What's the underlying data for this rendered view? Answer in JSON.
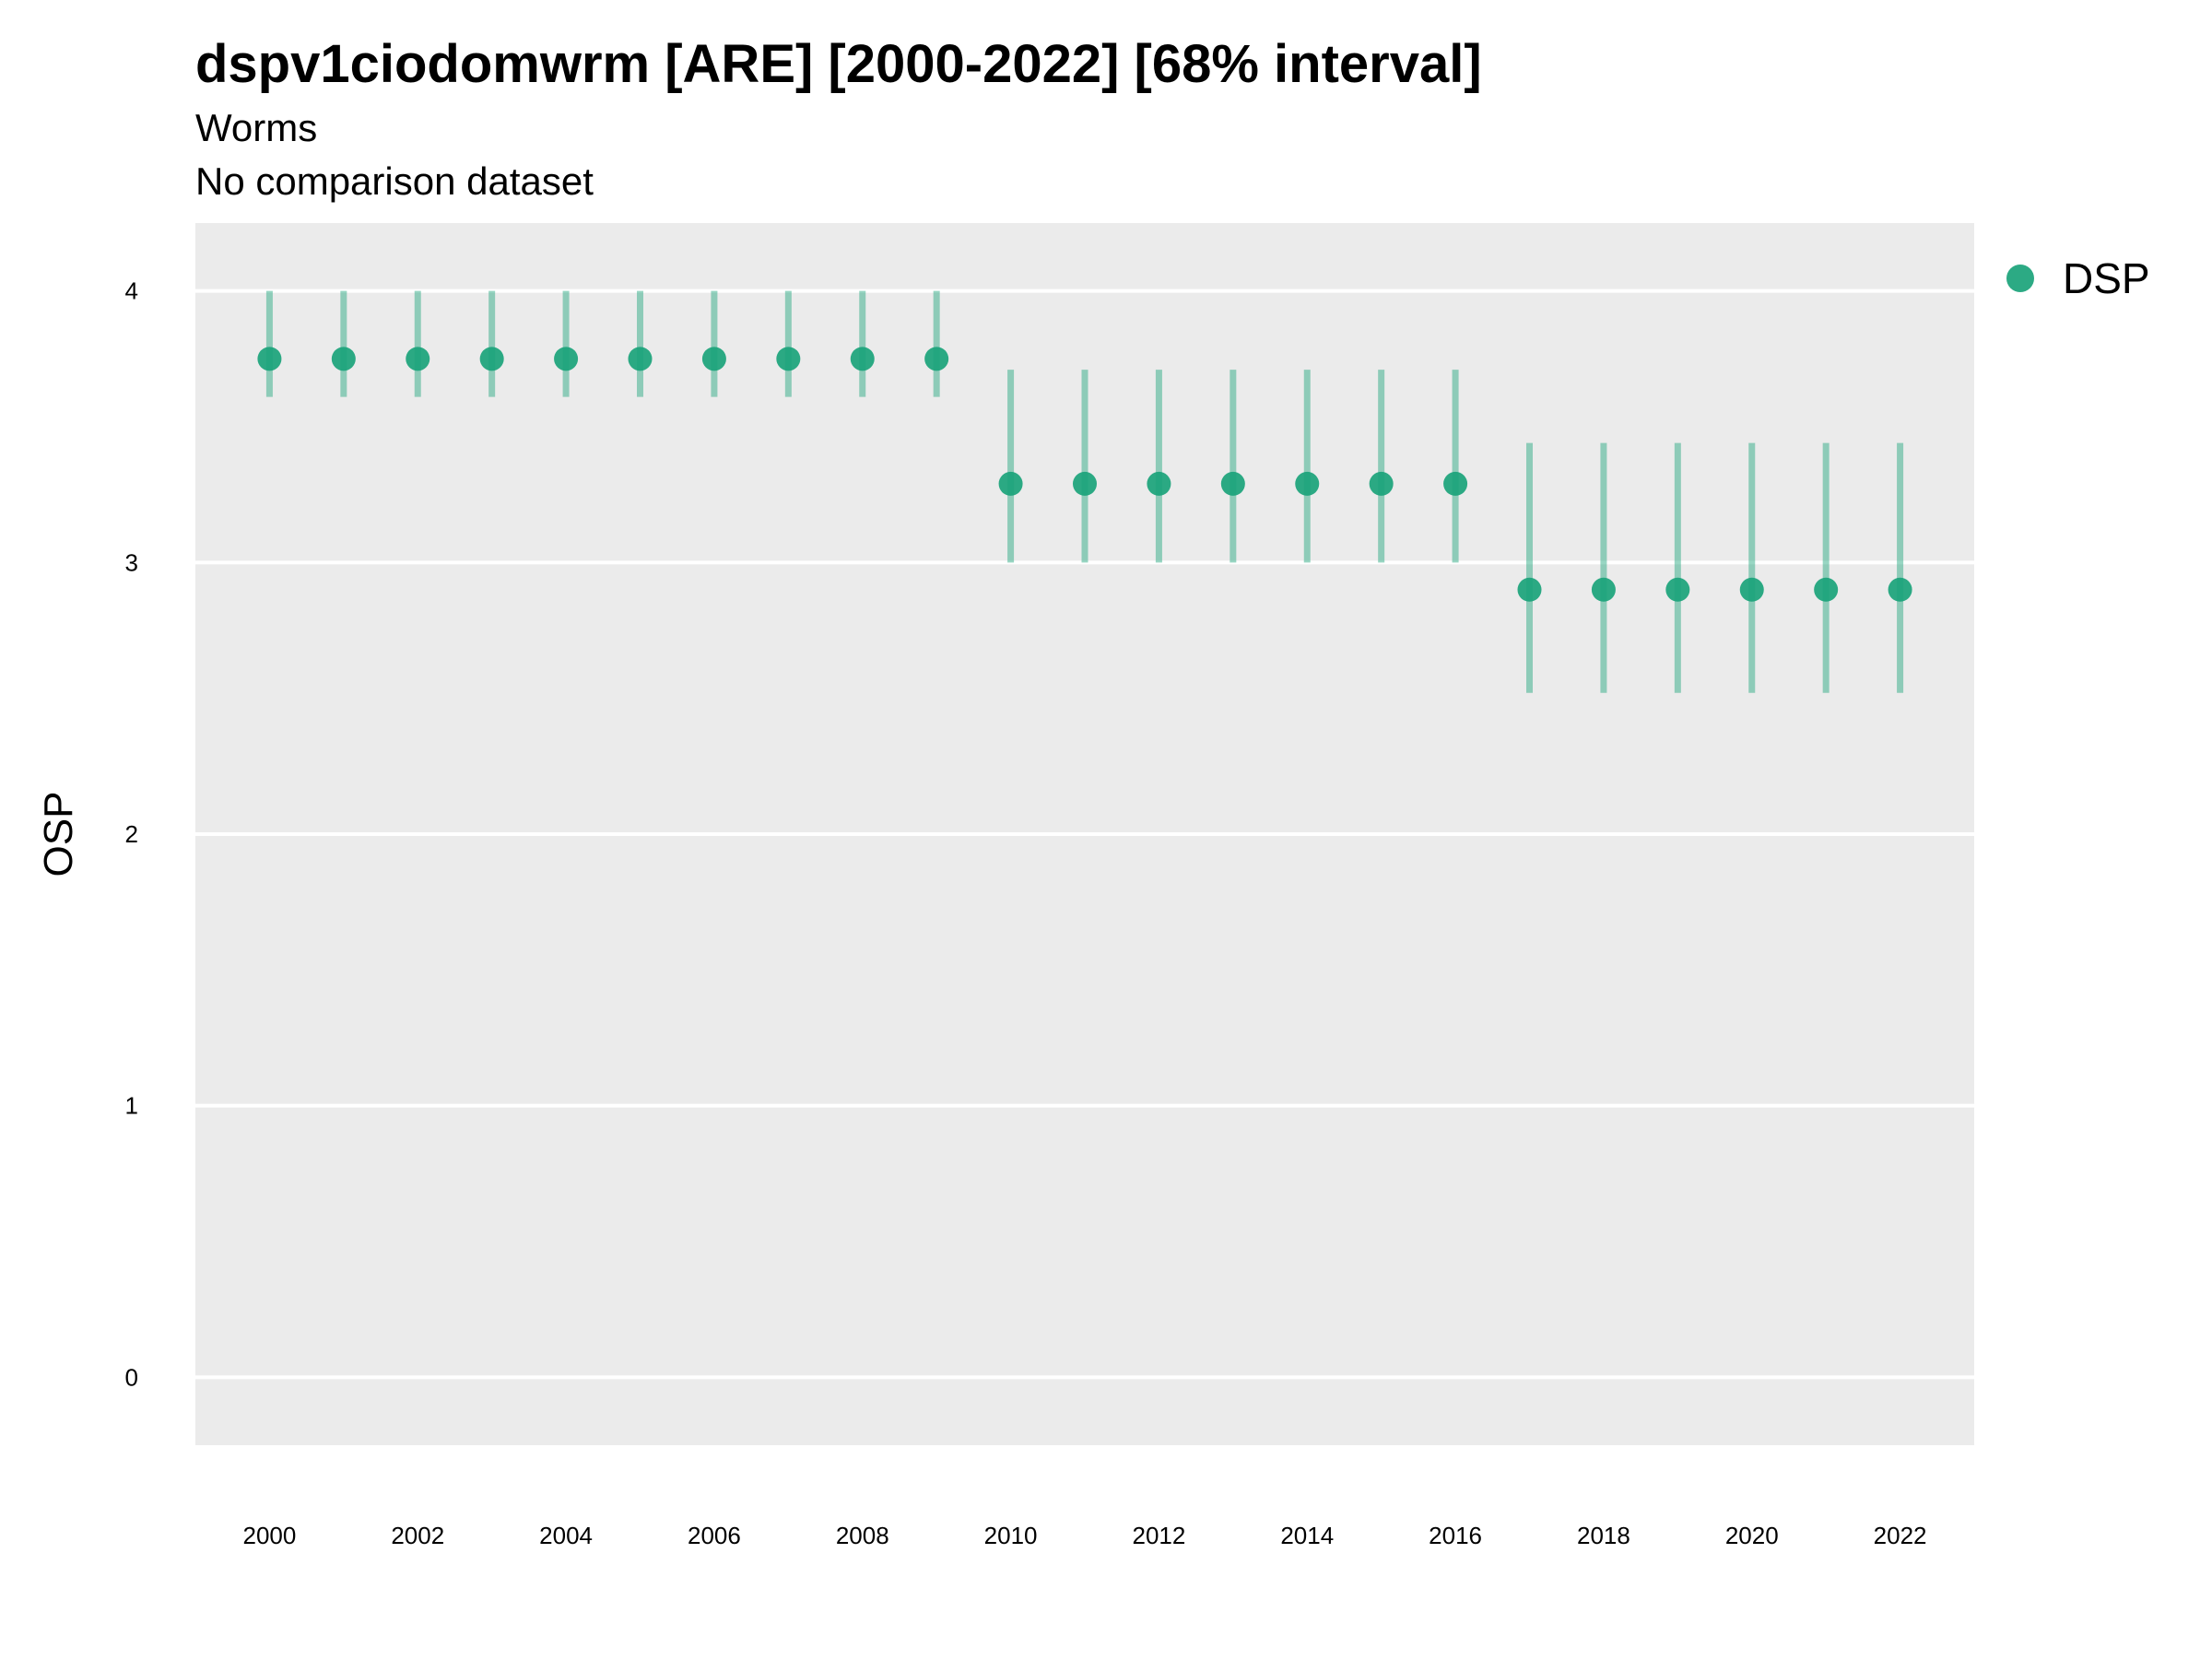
{
  "chart_data": {
    "type": "scatter",
    "title": "dspv1ciodomwrm [ARE] [2000-2022] [68% interval]",
    "subtitle": "Worms",
    "caption": "No comparison dataset",
    "xlabel": "",
    "ylabel": "OSP",
    "xlim": [
      1999,
      2023
    ],
    "ylim": [
      -0.25,
      4.25
    ],
    "x_ticks": [
      2000,
      2002,
      2004,
      2006,
      2008,
      2010,
      2012,
      2014,
      2016,
      2018,
      2020,
      2022
    ],
    "y_ticks": [
      0,
      1,
      2,
      3,
      4
    ],
    "grid": "horizontal",
    "legend_position": "right",
    "series": [
      {
        "name": "DSP",
        "color": "#1aa37a",
        "points": [
          {
            "x": 2000,
            "y": 3.75,
            "lo": 3.61,
            "hi": 4.0
          },
          {
            "x": 2001,
            "y": 3.75,
            "lo": 3.61,
            "hi": 4.0
          },
          {
            "x": 2002,
            "y": 3.75,
            "lo": 3.61,
            "hi": 4.0
          },
          {
            "x": 2003,
            "y": 3.75,
            "lo": 3.61,
            "hi": 4.0
          },
          {
            "x": 2004,
            "y": 3.75,
            "lo": 3.61,
            "hi": 4.0
          },
          {
            "x": 2005,
            "y": 3.75,
            "lo": 3.61,
            "hi": 4.0
          },
          {
            "x": 2006,
            "y": 3.75,
            "lo": 3.61,
            "hi": 4.0
          },
          {
            "x": 2007,
            "y": 3.75,
            "lo": 3.61,
            "hi": 4.0
          },
          {
            "x": 2008,
            "y": 3.75,
            "lo": 3.61,
            "hi": 4.0
          },
          {
            "x": 2009,
            "y": 3.75,
            "lo": 3.61,
            "hi": 4.0
          },
          {
            "x": 2010,
            "y": 3.29,
            "lo": 3.0,
            "hi": 3.71
          },
          {
            "x": 2011,
            "y": 3.29,
            "lo": 3.0,
            "hi": 3.71
          },
          {
            "x": 2012,
            "y": 3.29,
            "lo": 3.0,
            "hi": 3.71
          },
          {
            "x": 2013,
            "y": 3.29,
            "lo": 3.0,
            "hi": 3.71
          },
          {
            "x": 2014,
            "y": 3.29,
            "lo": 3.0,
            "hi": 3.71
          },
          {
            "x": 2015,
            "y": 3.29,
            "lo": 3.0,
            "hi": 3.71
          },
          {
            "x": 2016,
            "y": 3.29,
            "lo": 3.0,
            "hi": 3.71
          },
          {
            "x": 2017,
            "y": 2.9,
            "lo": 2.52,
            "hi": 3.44
          },
          {
            "x": 2018,
            "y": 2.9,
            "lo": 2.52,
            "hi": 3.44
          },
          {
            "x": 2019,
            "y": 2.9,
            "lo": 2.52,
            "hi": 3.44
          },
          {
            "x": 2020,
            "y": 2.9,
            "lo": 2.52,
            "hi": 3.44
          },
          {
            "x": 2021,
            "y": 2.9,
            "lo": 2.52,
            "hi": 3.44
          },
          {
            "x": 2022,
            "y": 2.9,
            "lo": 2.52,
            "hi": 3.44
          }
        ]
      }
    ]
  },
  "colors": {
    "panel_background": "#ebebeb",
    "gridline": "#ffffff"
  }
}
